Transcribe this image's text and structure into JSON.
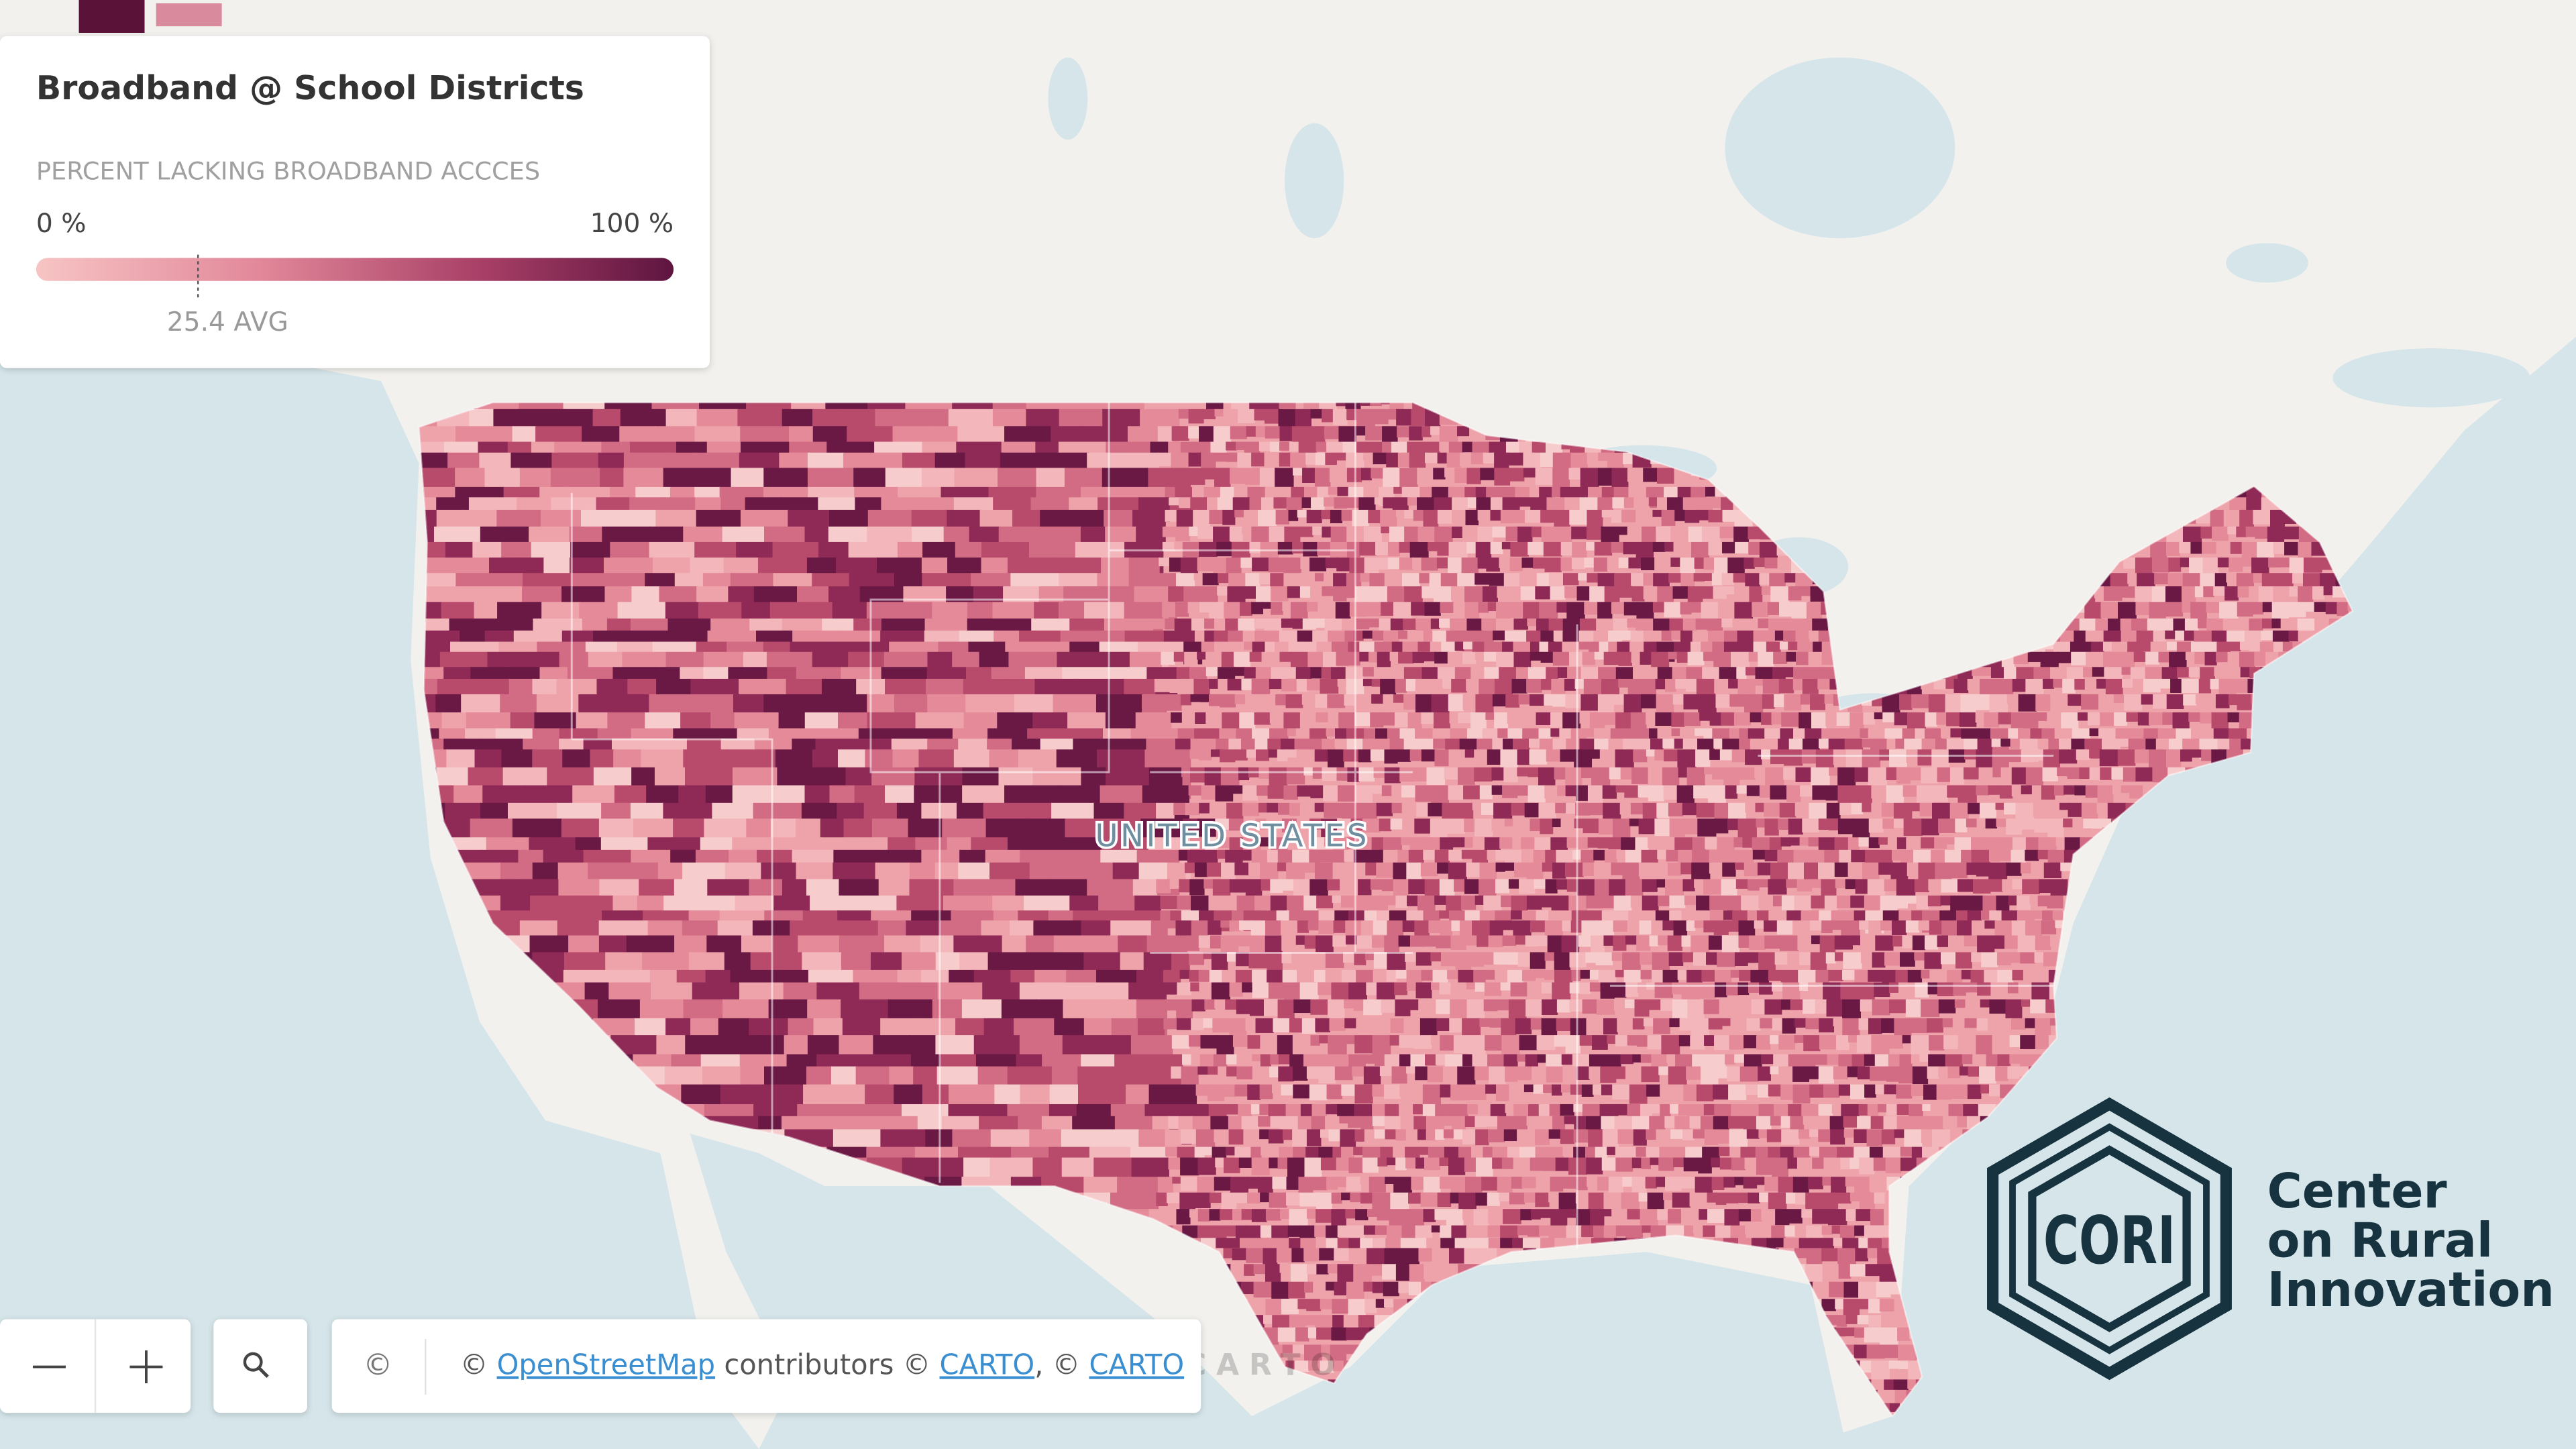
{
  "legend": {
    "title": "Broadband @ School Districts",
    "subtitle": "PERCENT LACKING BROADBAND ACCCES",
    "ticks": [
      {
        "value": 0,
        "label": "0 %"
      },
      {
        "value": 100,
        "label": "100 %"
      }
    ],
    "average": {
      "value": 25.4,
      "label": "25.4 AVG"
    }
  },
  "map": {
    "country_label": "UNITED STATES",
    "watermark": "CARTO"
  },
  "attribution": {
    "button": "©",
    "parts": [
      "©",
      "OpenStreetMap",
      "contributors ©",
      "CARTO",
      ", ©",
      "CARTO"
    ]
  },
  "logo": {
    "mark": "CORI",
    "lines": [
      "Center",
      "on Rural",
      "Innovation"
    ]
  }
}
